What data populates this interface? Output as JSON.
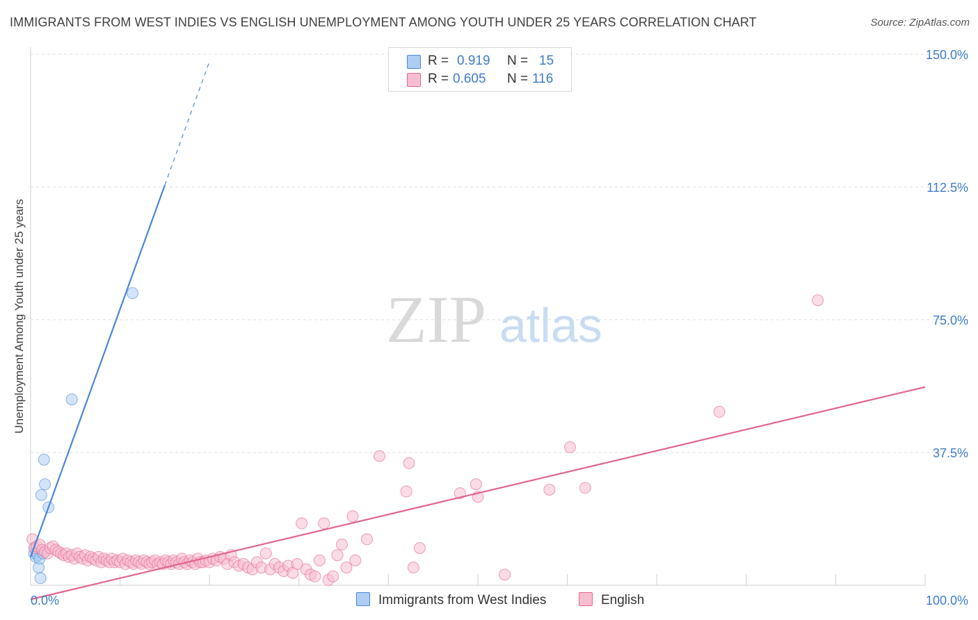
{
  "header": {
    "title": "IMMIGRANTS FROM WEST INDIES VS ENGLISH UNEMPLOYMENT AMONG YOUTH UNDER 25 YEARS CORRELATION CHART",
    "source": "Source: ZipAtlas.com"
  },
  "watermark": {
    "zip": "ZIP",
    "atlas": "atlas"
  },
  "legend": {
    "r_label": "R =",
    "n_label": "N =",
    "rows": [
      {
        "name": "Immigrants from West Indies",
        "r": "0.919",
        "n": "15",
        "color": "#aecdf2"
      },
      {
        "name": "English",
        "r": "0.605",
        "n": "116",
        "color": "#f7bed0"
      }
    ]
  },
  "chart_data": {
    "type": "scatter",
    "title": "IMMIGRANTS FROM WEST INDIES VS ENGLISH UNEMPLOYMENT AMONG YOUTH UNDER 25 YEARS CORRELATION CHART",
    "xlabel": "",
    "ylabel": "Unemployment Among Youth under 25 years",
    "xlim": [
      0,
      100
    ],
    "ylim": [
      0,
      150
    ],
    "x_tick_labels": [
      "0.0%",
      "100.0%"
    ],
    "y_ticks": [
      37.5,
      75.0,
      112.5,
      150.0
    ],
    "y_tick_labels": [
      "37.5%",
      "75.0%",
      "112.5%",
      "150.0%"
    ],
    "grid": true,
    "series": [
      {
        "name": "Immigrants from West Indies",
        "color": "#4a86d8",
        "fill": "#aecdf2",
        "points": [
          [
            0.4,
            9.0
          ],
          [
            0.5,
            10.5
          ],
          [
            0.6,
            8.0
          ],
          [
            0.7,
            9.5
          ],
          [
            0.8,
            8.5
          ],
          [
            0.9,
            5.0
          ],
          [
            1.0,
            7.5
          ],
          [
            1.1,
            2.0
          ],
          [
            1.2,
            25.5
          ],
          [
            1.4,
            9.0
          ],
          [
            1.5,
            35.5
          ],
          [
            1.6,
            28.5
          ],
          [
            2.0,
            22.0
          ],
          [
            4.6,
            52.5
          ],
          [
            11.4,
            82.5
          ]
        ],
        "trend": {
          "x0": 0.0,
          "y0": 8.0,
          "x1": 15.0,
          "y1": 113.0,
          "dash_to_x": 20.0,
          "dash_to_y": 148.0
        }
      },
      {
        "name": "English",
        "color": "#e2648f",
        "fill": "#f7bed0",
        "points": [
          [
            0.2,
            13.0
          ],
          [
            0.4,
            10.5
          ],
          [
            0.7,
            11.0
          ],
          [
            1.0,
            11.5
          ],
          [
            1.3,
            10.0
          ],
          [
            1.6,
            9.5
          ],
          [
            1.9,
            9.0
          ],
          [
            2.2,
            10.5
          ],
          [
            2.5,
            11.0
          ],
          [
            2.8,
            10.0
          ],
          [
            3.1,
            9.5
          ],
          [
            3.4,
            9.0
          ],
          [
            3.7,
            8.5
          ],
          [
            4.0,
            9.0
          ],
          [
            4.3,
            8.0
          ],
          [
            4.6,
            8.5
          ],
          [
            4.9,
            7.5
          ],
          [
            5.2,
            9.0
          ],
          [
            5.5,
            8.0
          ],
          [
            5.8,
            7.5
          ],
          [
            6.1,
            8.5
          ],
          [
            6.4,
            7.0
          ],
          [
            6.7,
            8.0
          ],
          [
            7.0,
            7.5
          ],
          [
            7.3,
            7.0
          ],
          [
            7.6,
            8.0
          ],
          [
            7.9,
            6.5
          ],
          [
            8.2,
            7.5
          ],
          [
            8.5,
            7.0
          ],
          [
            8.8,
            6.5
          ],
          [
            9.1,
            7.5
          ],
          [
            9.4,
            6.5
          ],
          [
            9.7,
            7.0
          ],
          [
            10.0,
            6.5
          ],
          [
            10.3,
            7.5
          ],
          [
            10.6,
            6.0
          ],
          [
            10.9,
            7.0
          ],
          [
            11.2,
            6.5
          ],
          [
            11.5,
            6.0
          ],
          [
            11.8,
            7.0
          ],
          [
            12.1,
            6.5
          ],
          [
            12.4,
            6.0
          ],
          [
            12.7,
            7.0
          ],
          [
            13.0,
            6.5
          ],
          [
            13.3,
            6.0
          ],
          [
            13.6,
            6.5
          ],
          [
            13.9,
            7.0
          ],
          [
            14.2,
            6.0
          ],
          [
            14.5,
            6.5
          ],
          [
            14.8,
            6.0
          ],
          [
            15.1,
            7.0
          ],
          [
            15.4,
            6.5
          ],
          [
            15.7,
            6.0
          ],
          [
            16.0,
            7.0
          ],
          [
            16.3,
            6.5
          ],
          [
            16.6,
            6.0
          ],
          [
            16.9,
            7.5
          ],
          [
            17.2,
            6.5
          ],
          [
            17.5,
            6.0
          ],
          [
            17.8,
            7.0
          ],
          [
            18.1,
            6.5
          ],
          [
            18.4,
            6.0
          ],
          [
            18.7,
            7.5
          ],
          [
            19.0,
            6.5
          ],
          [
            19.3,
            6.5
          ],
          [
            19.6,
            7.0
          ],
          [
            20.0,
            6.5
          ],
          [
            20.4,
            7.5
          ],
          [
            20.8,
            7.0
          ],
          [
            21.2,
            8.0
          ],
          [
            21.6,
            7.5
          ],
          [
            22.0,
            6.0
          ],
          [
            22.4,
            8.5
          ],
          [
            22.8,
            6.5
          ],
          [
            23.3,
            5.5
          ],
          [
            23.8,
            6.0
          ],
          [
            24.3,
            5.0
          ],
          [
            24.8,
            4.5
          ],
          [
            25.3,
            6.5
          ],
          [
            25.8,
            5.0
          ],
          [
            26.3,
            9.0
          ],
          [
            26.8,
            4.5
          ],
          [
            27.3,
            6.0
          ],
          [
            27.8,
            5.0
          ],
          [
            28.3,
            4.0
          ],
          [
            28.8,
            5.5
          ],
          [
            29.3,
            3.5
          ],
          [
            29.8,
            6.0
          ],
          [
            30.3,
            17.5
          ],
          [
            30.8,
            4.5
          ],
          [
            31.3,
            3.0
          ],
          [
            31.8,
            2.5
          ],
          [
            32.3,
            7.0
          ],
          [
            32.8,
            17.5
          ],
          [
            33.3,
            1.5
          ],
          [
            33.8,
            2.5
          ],
          [
            34.3,
            8.5
          ],
          [
            34.8,
            11.5
          ],
          [
            35.3,
            5.0
          ],
          [
            36.0,
            19.5
          ],
          [
            36.3,
            7.0
          ],
          [
            37.6,
            13.0
          ],
          [
            39.0,
            36.5
          ],
          [
            42.0,
            26.5
          ],
          [
            42.3,
            34.5
          ],
          [
            42.8,
            5.0
          ],
          [
            43.5,
            10.5
          ],
          [
            48.0,
            26.0
          ],
          [
            49.8,
            28.5
          ],
          [
            50.0,
            25.0
          ],
          [
            53.0,
            3.0
          ],
          [
            58.0,
            27.0
          ],
          [
            60.3,
            39.0
          ],
          [
            62.0,
            27.5
          ],
          [
            77.0,
            49.0
          ],
          [
            88.0,
            80.5
          ]
        ],
        "trend": {
          "x0": 0.0,
          "y0": -4.0,
          "x1": 100.0,
          "y1": 56.0
        }
      }
    ]
  }
}
